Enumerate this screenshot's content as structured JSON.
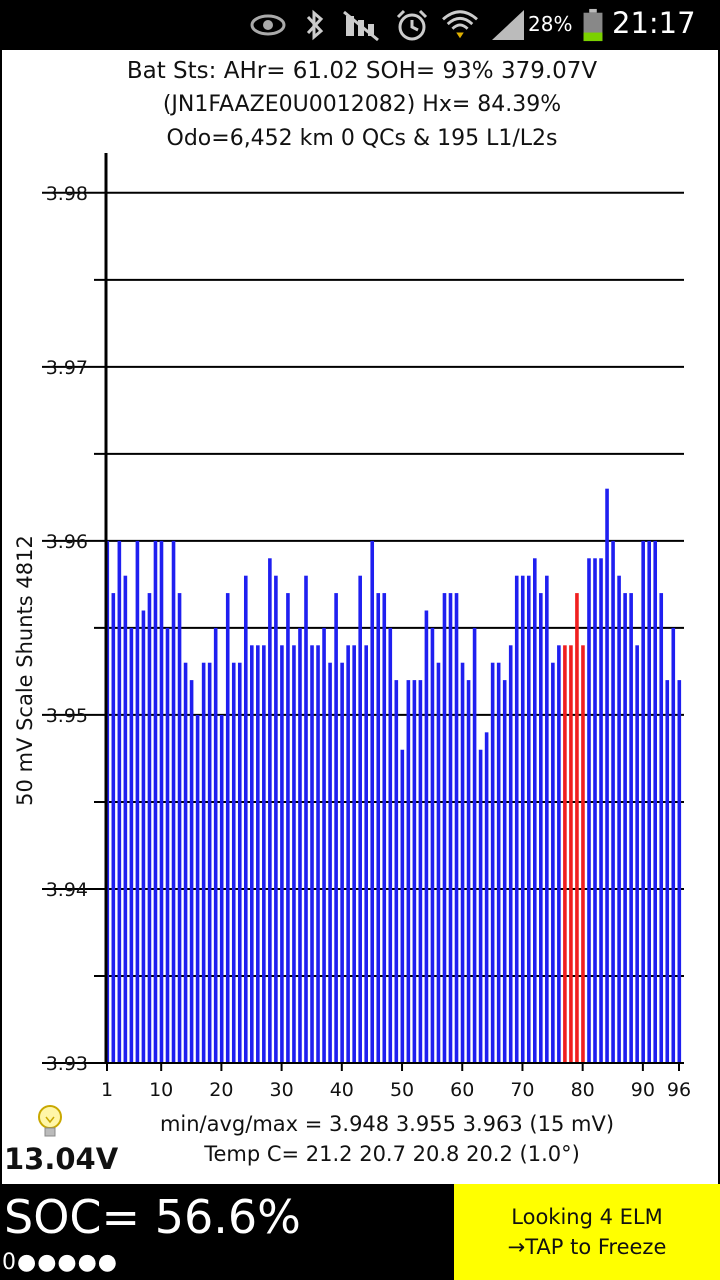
{
  "status_bar": {
    "icons": [
      "eye-icon",
      "bluetooth-icon",
      "no-sound-icon",
      "alarm-icon",
      "wifi-icon",
      "signal-icon",
      "battery-icon"
    ],
    "battery_pct": "28%",
    "time": "21:17"
  },
  "header": {
    "line1": "Bat Sts: AHr= 61.02  SOH= 93%  379.07V",
    "line2": "(JN1FAAZE0U0012082)   Hx= 84.39%",
    "line3": "Odo=6,452 km  0 QCs  &  195 L1/L2s"
  },
  "chart_data": {
    "type": "bar",
    "ylabel": "50 mV Scale   Shunts 4812",
    "ylim": [
      3.93,
      3.982
    ],
    "yticks": [
      "3.93",
      "3.94",
      "3.95",
      "3.96",
      "3.97",
      "3.98"
    ],
    "xticks": [
      "1",
      "10",
      "20",
      "30",
      "40",
      "50",
      "60",
      "70",
      "80",
      "90",
      "96"
    ],
    "x": [
      1,
      2,
      3,
      4,
      5,
      6,
      7,
      8,
      9,
      10,
      11,
      12,
      13,
      14,
      15,
      16,
      17,
      18,
      19,
      20,
      21,
      22,
      23,
      24,
      25,
      26,
      27,
      28,
      29,
      30,
      31,
      32,
      33,
      34,
      35,
      36,
      37,
      38,
      39,
      40,
      41,
      42,
      43,
      44,
      45,
      46,
      47,
      48,
      49,
      50,
      51,
      52,
      53,
      54,
      55,
      56,
      57,
      58,
      59,
      60,
      61,
      62,
      63,
      64,
      65,
      66,
      67,
      68,
      69,
      70,
      71,
      72,
      73,
      74,
      75,
      76,
      77,
      78,
      79,
      80,
      81,
      82,
      83,
      84,
      85,
      86,
      87,
      88,
      89,
      90,
      91,
      92,
      93,
      94,
      95,
      96
    ],
    "values": [
      3.96,
      3.957,
      3.96,
      3.958,
      3.955,
      3.96,
      3.956,
      3.957,
      3.96,
      3.96,
      3.955,
      3.96,
      3.957,
      3.953,
      3.952,
      3.95,
      3.953,
      3.953,
      3.955,
      3.95,
      3.957,
      3.953,
      3.953,
      3.958,
      3.954,
      3.954,
      3.954,
      3.959,
      3.958,
      3.954,
      3.957,
      3.954,
      3.955,
      3.958,
      3.954,
      3.954,
      3.955,
      3.953,
      3.957,
      3.953,
      3.954,
      3.954,
      3.958,
      3.954,
      3.96,
      3.957,
      3.957,
      3.955,
      3.952,
      3.948,
      3.952,
      3.952,
      3.952,
      3.956,
      3.955,
      3.953,
      3.957,
      3.957,
      3.957,
      3.953,
      3.952,
      3.955,
      3.948,
      3.949,
      3.953,
      3.953,
      3.952,
      3.954,
      3.958,
      3.958,
      3.958,
      3.959,
      3.957,
      3.958,
      3.953,
      3.954,
      3.954,
      3.954,
      3.957,
      3.954,
      3.959,
      3.959,
      3.959,
      3.963,
      3.96,
      3.958,
      3.957,
      3.957,
      3.954,
      3.96,
      3.96,
      3.96,
      3.957,
      3.952,
      3.955,
      3.952
    ],
    "highlight": [
      77,
      78,
      79,
      80
    ],
    "bar_color": "#1f1ff0",
    "highlight_color": "#f01f1f",
    "grid": true
  },
  "footer": {
    "stats": "min/avg/max = 3.948  3.955  3.963  (15 mV)",
    "temp": "Temp C= 21.2  20.7  20.8  20.2  (1.0°)",
    "voltage12": "13.04V"
  },
  "bottom": {
    "soc": "SOC= 56.6%",
    "dots": "0●●●●●",
    "elm_line1": "Looking 4 ELM",
    "elm_line2": "→TAP to Freeze"
  }
}
